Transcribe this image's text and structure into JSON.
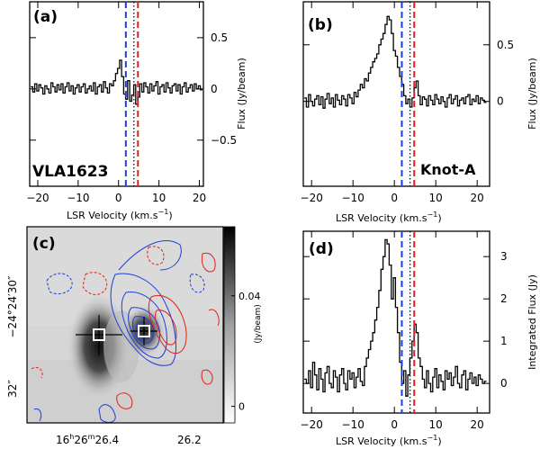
{
  "chart_data": [
    {
      "id": "a",
      "type": "line",
      "panel_label": "(a)",
      "source_label": "VLA1623",
      "xlabel": "LSR Velocity  (km.s",
      "xlabel_sup": "−1",
      "xlabel_close": ")",
      "ylabel": "Flux  (Jy/beam)",
      "xlim": [
        -22,
        21
      ],
      "ylim": [
        -0.95,
        0.85
      ],
      "x_ticks": [
        -20,
        -10,
        0,
        10,
        20
      ],
      "x_tick_labels": [
        "−20",
        "−10",
        "0",
        "10",
        "20"
      ],
      "y_ticks": [
        0.5,
        0,
        -0.5
      ],
      "y_tick_labels": [
        "0.5",
        "0",
        "−0.5"
      ],
      "vlines": [
        {
          "x": 1.8,
          "color": "#1a3fd6",
          "style": "dashed"
        },
        {
          "x": 3.8,
          "color": "#000000",
          "style": "dotted"
        },
        {
          "x": 4.8,
          "color": "#e0201b",
          "style": "dashed"
        }
      ],
      "series": [
        {
          "name": "spectrum",
          "color": "#000000",
          "x": [
            -21.5,
            -21,
            -20.5,
            -20,
            -19.5,
            -19,
            -18.5,
            -18,
            -17.5,
            -17,
            -16.5,
            -16,
            -15.5,
            -15,
            -14.5,
            -14,
            -13.5,
            -13,
            -12.5,
            -12,
            -11.5,
            -11,
            -10.5,
            -10,
            -9.5,
            -9,
            -8.5,
            -8,
            -7.5,
            -7,
            -6.5,
            -6,
            -5.5,
            -5,
            -4.5,
            -4,
            -3.5,
            -3,
            -2.5,
            -2,
            -1.5,
            -1,
            -0.5,
            0,
            0.5,
            1,
            1.5,
            2,
            2.5,
            3,
            3.5,
            4,
            4.5,
            5,
            5.5,
            6,
            6.5,
            7,
            7.5,
            8,
            8.5,
            9,
            9.5,
            10,
            10.5,
            11,
            11.5,
            12,
            12.5,
            13,
            13.5,
            14,
            14.5,
            15,
            15.5,
            16,
            16.5,
            17,
            17.5,
            18,
            18.5,
            19,
            19.5,
            20,
            20.5
          ],
          "y": [
            0.02,
            -0.03,
            0.05,
            -0.02,
            0.04,
            0.01,
            -0.05,
            0.03,
            0.0,
            -0.04,
            0.06,
            0.02,
            -0.03,
            0.04,
            -0.01,
            0.05,
            -0.04,
            0.02,
            0.06,
            -0.02,
            0.03,
            -0.05,
            0.01,
            0.04,
            -0.03,
            0.02,
            0.05,
            -0.04,
            0.0,
            0.03,
            -0.02,
            0.06,
            -0.05,
            0.02,
            0.04,
            -0.03,
            0.07,
            0.01,
            -0.04,
            0.05,
            0.03,
            0.08,
            0.15,
            0.2,
            0.28,
            0.12,
            -0.05,
            -0.1,
            0.08,
            -0.12,
            -0.06,
            0.04,
            -0.15,
            -0.08,
            0.05,
            -0.03,
            0.06,
            0.02,
            -0.04,
            0.05,
            -0.02,
            0.03,
            0.07,
            -0.05,
            0.02,
            0.04,
            -0.03,
            0.06,
            0.01,
            -0.04,
            0.03,
            0.05,
            -0.02,
            0.04,
            -0.05,
            0.02,
            0.06,
            -0.03,
            0.01,
            0.04,
            -0.02,
            0.05,
            0.0,
            0.03,
            -0.01
          ]
        }
      ]
    },
    {
      "id": "b",
      "type": "line",
      "panel_label": "(b)",
      "source_label": "Knot-A",
      "xlabel": "LSR Velocity  (km.s",
      "xlabel_sup": "−1",
      "xlabel_close": ")",
      "ylabel": "Flux  (Jy/beam)",
      "xlim": [
        -22,
        23
      ],
      "ylim": [
        -0.75,
        0.88
      ],
      "x_ticks": [
        -20,
        -10,
        0,
        10,
        20
      ],
      "x_tick_labels": [
        "−20",
        "−10",
        "0",
        "10",
        "20"
      ],
      "y_ticks": [
        0.5,
        0
      ],
      "y_tick_labels": [
        "0.5",
        "0"
      ],
      "vlines": [
        {
          "x": 1.8,
          "color": "#1a3fd6",
          "style": "dashed"
        },
        {
          "x": 3.8,
          "color": "#000000",
          "style": "dotted"
        },
        {
          "x": 4.8,
          "color": "#e0201b",
          "style": "dashed"
        }
      ],
      "series": [
        {
          "name": "spectrum",
          "color": "#000000",
          "x": [
            -21.5,
            -21,
            -20.5,
            -20,
            -19.5,
            -19,
            -18.5,
            -18,
            -17.5,
            -17,
            -16.5,
            -16,
            -15.5,
            -15,
            -14.5,
            -14,
            -13.5,
            -13,
            -12.5,
            -12,
            -11.5,
            -11,
            -10.5,
            -10,
            -9.5,
            -9,
            -8.5,
            -8,
            -7.5,
            -7,
            -6.5,
            -6,
            -5.5,
            -5,
            -4.5,
            -4,
            -3.5,
            -3,
            -2.5,
            -2,
            -1.5,
            -1,
            -0.5,
            0,
            0.5,
            1,
            1.5,
            2,
            2.5,
            3,
            3.5,
            4,
            4.5,
            5,
            5.5,
            6,
            6.5,
            7,
            7.5,
            8,
            8.5,
            9,
            9.5,
            10,
            10.5,
            11,
            11.5,
            12,
            12.5,
            13,
            13.5,
            14,
            14.5,
            15,
            15.5,
            16,
            16.5,
            17,
            17.5,
            18,
            18.5,
            19,
            19.5,
            20,
            20.5,
            21,
            21.5,
            22
          ],
          "y": [
            0.03,
            -0.05,
            0.06,
            0.0,
            -0.04,
            0.02,
            0.05,
            -0.03,
            0.04,
            -0.06,
            0.02,
            0.07,
            -0.02,
            0.03,
            -0.05,
            0.06,
            0.01,
            -0.03,
            0.05,
            0.02,
            -0.04,
            0.06,
            0.03,
            -0.02,
            0.08,
            0.04,
            0.1,
            0.15,
            0.12,
            0.2,
            0.18,
            0.25,
            0.3,
            0.35,
            0.38,
            0.42,
            0.5,
            0.55,
            0.6,
            0.68,
            0.75,
            0.72,
            0.6,
            0.45,
            0.4,
            0.3,
            0.22,
            0.15,
            0.05,
            -0.02,
            0.02,
            -0.05,
            0.03,
            0.12,
            0.18,
            0.05,
            -0.03,
            0.04,
            0.02,
            -0.04,
            0.05,
            0.01,
            -0.03,
            0.06,
            0.02,
            -0.02,
            0.04,
            0.0,
            -0.05,
            0.03,
            0.06,
            -0.02,
            0.02,
            0.05,
            -0.04,
            0.01,
            0.03,
            -0.02,
            0.04,
            0.06,
            -0.03,
            0.02,
            0.0,
            0.05,
            -0.02,
            0.03,
            0.01,
            -0.01
          ]
        }
      ]
    },
    {
      "id": "c",
      "type": "heatmap",
      "panel_label": "(c)",
      "x_tick_labels": [
        "16",
        "h",
        "26",
        "m",
        "26.4",
        "26.2"
      ],
      "y_tick_labels": [
        "−24°24′30″",
        "32″"
      ],
      "colorbar_label": "(Jy/beam)",
      "colorbar_ticks": [
        0.04,
        0
      ],
      "colorbar_tick_labels": [
        "0.04",
        "0"
      ],
      "colorbar_range": [
        -0.006,
        0.065
      ],
      "sources": [
        {
          "name": "VLA1623",
          "marker": "square-cross"
        },
        {
          "name": "Knot-A",
          "marker": "square-cross"
        }
      ],
      "contours": [
        {
          "color": "#1a3fd6",
          "style": "solid",
          "levels": 6
        },
        {
          "color": "#e0201b",
          "style": "solid",
          "levels": 3
        },
        {
          "color": "#e0201b",
          "style": "dashed",
          "levels": 2
        },
        {
          "color": "#1a3fd6",
          "style": "dashed",
          "levels": 2
        }
      ]
    },
    {
      "id": "d",
      "type": "line",
      "panel_label": "(d)",
      "xlabel": "LSR Velocity  (km.s",
      "xlabel_sup": "−1",
      "xlabel_close": ")",
      "ylabel": "Integrated Flux  (Jy)",
      "xlim": [
        -22,
        23
      ],
      "ylim": [
        -0.7,
        3.6
      ],
      "x_ticks": [
        -20,
        -10,
        0,
        10,
        20
      ],
      "x_tick_labels": [
        "−20",
        "−10",
        "0",
        "10",
        "20"
      ],
      "y_ticks": [
        3,
        2,
        1,
        0
      ],
      "y_tick_labels": [
        "3",
        "2",
        "1",
        "0"
      ],
      "vlines": [
        {
          "x": 1.8,
          "color": "#1a3fd6",
          "style": "dashed"
        },
        {
          "x": 3.8,
          "color": "#000000",
          "style": "dotted"
        },
        {
          "x": 4.8,
          "color": "#e0201b",
          "style": "dashed"
        }
      ],
      "series": [
        {
          "name": "spectrum",
          "color": "#000000",
          "x": [
            -21.5,
            -21,
            -20.5,
            -20,
            -19.5,
            -19,
            -18.5,
            -18,
            -17.5,
            -17,
            -16.5,
            -16,
            -15.5,
            -15,
            -14.5,
            -14,
            -13.5,
            -13,
            -12.5,
            -12,
            -11.5,
            -11,
            -10.5,
            -10,
            -9.5,
            -9,
            -8.5,
            -8,
            -7.5,
            -7,
            -6.5,
            -6,
            -5.5,
            -5,
            -4.5,
            -4,
            -3.5,
            -3,
            -2.5,
            -2,
            -1.5,
            -1,
            -0.5,
            0,
            0.5,
            1,
            1.5,
            2,
            2.5,
            3,
            3.5,
            4,
            4.5,
            5,
            5.5,
            6,
            6.5,
            7,
            7.5,
            8,
            8.5,
            9,
            9.5,
            10,
            10.5,
            11,
            11.5,
            12,
            12.5,
            13,
            13.5,
            14,
            14.5,
            15,
            15.5,
            16,
            16.5,
            17,
            17.5,
            18,
            18.5,
            19,
            19.5,
            20,
            20.5,
            21,
            21.5,
            22
          ],
          "y": [
            0.1,
            0.0,
            0.3,
            -0.1,
            0.5,
            0.2,
            -0.15,
            0.35,
            0.1,
            -0.2,
            0.25,
            0.4,
            0.0,
            -0.1,
            0.3,
            0.15,
            -0.2,
            0.2,
            0.35,
            0.0,
            -0.15,
            0.3,
            0.1,
            0.25,
            -0.1,
            0.15,
            0.35,
            0.05,
            -0.05,
            0.4,
            0.6,
            0.8,
            1.0,
            1.2,
            1.5,
            1.8,
            2.2,
            2.7,
            3.0,
            3.4,
            3.3,
            2.8,
            2.0,
            2.5,
            1.8,
            1.2,
            0.5,
            0.0,
            0.3,
            -0.3,
            0.2,
            0.6,
            1.0,
            1.4,
            1.2,
            0.6,
            0.4,
            0.1,
            -0.1,
            0.3,
            0.0,
            -0.2,
            0.15,
            0.35,
            -0.1,
            0.2,
            0.05,
            -0.15,
            0.3,
            0.1,
            0.25,
            -0.05,
            0.15,
            0.4,
            0.0,
            -0.1,
            0.2,
            0.3,
            -0.15,
            0.1,
            0.25,
            0.0,
            0.15,
            -0.05,
            0.2,
            0.1,
            0.0,
            0.05
          ]
        }
      ]
    }
  ]
}
